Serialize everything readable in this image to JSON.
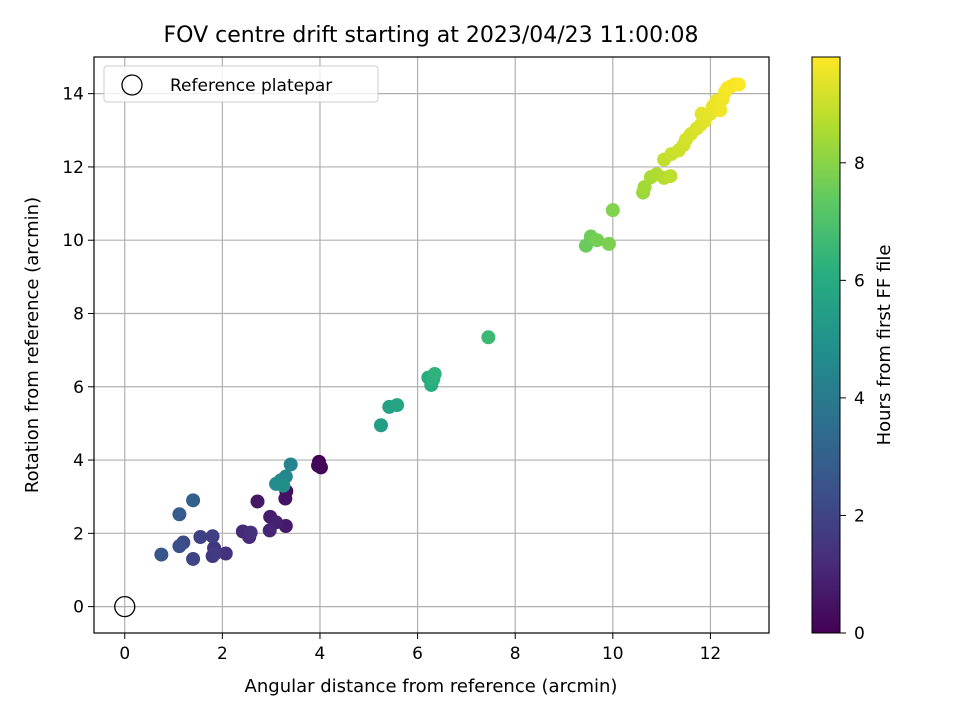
{
  "chart_data": {
    "type": "scatter",
    "title": "FOV centre drift starting at 2023/04/23 11:00:08",
    "xlabel": "Angular distance from reference (arcmin)",
    "ylabel": "Rotation from reference (arcmin)",
    "xlim": [
      -0.63,
      13.2
    ],
    "ylim": [
      -0.72,
      15.0
    ],
    "xticks": [
      0,
      2,
      4,
      6,
      8,
      10,
      12
    ],
    "yticks": [
      0,
      2,
      4,
      6,
      8,
      10,
      12,
      14
    ],
    "grid": true,
    "legend": {
      "position": "top-left",
      "entries": [
        "Reference platepar"
      ]
    },
    "reference_point": {
      "x": 0,
      "y": 0,
      "label": "Reference platepar",
      "marker": "open-circle"
    },
    "colorbar": {
      "label": "Hours from first FF file",
      "colormap": "viridis",
      "range": [
        0,
        9.8
      ],
      "ticks": [
        0,
        2,
        4,
        6,
        8
      ]
    },
    "points": [
      {
        "x": 3.98,
        "y": 3.95,
        "c": 0.0
      },
      {
        "x": 4.02,
        "y": 3.8,
        "c": 0.1
      },
      {
        "x": 3.96,
        "y": 3.85,
        "c": 0.2
      },
      {
        "x": 3.31,
        "y": 3.15,
        "c": 0.4
      },
      {
        "x": 3.29,
        "y": 2.95,
        "c": 0.5
      },
      {
        "x": 2.72,
        "y": 2.87,
        "c": 0.6
      },
      {
        "x": 3.3,
        "y": 2.2,
        "c": 0.7
      },
      {
        "x": 2.98,
        "y": 2.45,
        "c": 0.8
      },
      {
        "x": 3.1,
        "y": 2.3,
        "c": 0.9
      },
      {
        "x": 2.97,
        "y": 2.08,
        "c": 1.0
      },
      {
        "x": 2.42,
        "y": 2.05,
        "c": 1.1
      },
      {
        "x": 2.55,
        "y": 1.9,
        "c": 1.2
      },
      {
        "x": 2.58,
        "y": 2.02,
        "c": 1.3
      },
      {
        "x": 2.07,
        "y": 1.45,
        "c": 1.4
      },
      {
        "x": 1.83,
        "y": 1.6,
        "c": 1.5
      },
      {
        "x": 1.8,
        "y": 1.38,
        "c": 1.6
      },
      {
        "x": 1.85,
        "y": 1.45,
        "c": 1.7
      },
      {
        "x": 1.8,
        "y": 1.92,
        "c": 1.8
      },
      {
        "x": 1.55,
        "y": 1.9,
        "c": 1.9
      },
      {
        "x": 1.4,
        "y": 1.3,
        "c": 2.0
      },
      {
        "x": 1.2,
        "y": 1.75,
        "c": 2.2
      },
      {
        "x": 1.12,
        "y": 1.65,
        "c": 2.4
      },
      {
        "x": 0.75,
        "y": 1.42,
        "c": 2.6
      },
      {
        "x": 1.12,
        "y": 2.52,
        "c": 2.8
      },
      {
        "x": 1.4,
        "y": 2.9,
        "c": 3.0
      },
      {
        "x": 3.4,
        "y": 3.88,
        "c": 4.4
      },
      {
        "x": 3.3,
        "y": 3.55,
        "c": 4.5
      },
      {
        "x": 3.2,
        "y": 3.45,
        "c": 4.6
      },
      {
        "x": 3.1,
        "y": 3.35,
        "c": 4.7
      },
      {
        "x": 3.25,
        "y": 3.3,
        "c": 4.8
      },
      {
        "x": 5.25,
        "y": 4.95,
        "c": 5.4
      },
      {
        "x": 5.42,
        "y": 5.45,
        "c": 5.6
      },
      {
        "x": 5.58,
        "y": 5.5,
        "c": 5.7
      },
      {
        "x": 6.22,
        "y": 6.25,
        "c": 6.0
      },
      {
        "x": 6.28,
        "y": 6.05,
        "c": 6.1
      },
      {
        "x": 6.32,
        "y": 6.2,
        "c": 6.2
      },
      {
        "x": 6.35,
        "y": 6.35,
        "c": 6.3
      },
      {
        "x": 7.45,
        "y": 7.35,
        "c": 6.6
      },
      {
        "x": 9.45,
        "y": 9.85,
        "c": 7.5
      },
      {
        "x": 9.55,
        "y": 10.1,
        "c": 7.6
      },
      {
        "x": 9.68,
        "y": 10.0,
        "c": 7.7
      },
      {
        "x": 9.92,
        "y": 9.9,
        "c": 7.8
      },
      {
        "x": 10.0,
        "y": 10.82,
        "c": 7.9
      },
      {
        "x": 10.62,
        "y": 11.3,
        "c": 8.3
      },
      {
        "x": 10.65,
        "y": 11.45,
        "c": 8.4
      },
      {
        "x": 10.78,
        "y": 11.72,
        "c": 8.5
      },
      {
        "x": 10.9,
        "y": 11.8,
        "c": 8.6
      },
      {
        "x": 11.05,
        "y": 11.7,
        "c": 8.7
      },
      {
        "x": 11.18,
        "y": 11.75,
        "c": 8.8
      },
      {
        "x": 11.05,
        "y": 12.2,
        "c": 8.9
      },
      {
        "x": 11.2,
        "y": 12.35,
        "c": 9.0
      },
      {
        "x": 11.35,
        "y": 12.45,
        "c": 9.05
      },
      {
        "x": 11.45,
        "y": 12.6,
        "c": 9.1
      },
      {
        "x": 11.5,
        "y": 12.75,
        "c": 9.15
      },
      {
        "x": 11.6,
        "y": 12.9,
        "c": 9.2
      },
      {
        "x": 11.72,
        "y": 13.05,
        "c": 9.25
      },
      {
        "x": 11.8,
        "y": 13.15,
        "c": 9.3
      },
      {
        "x": 11.88,
        "y": 13.25,
        "c": 9.35
      },
      {
        "x": 11.82,
        "y": 13.45,
        "c": 9.4
      },
      {
        "x": 12.0,
        "y": 13.45,
        "c": 9.45
      },
      {
        "x": 12.05,
        "y": 13.65,
        "c": 9.5
      },
      {
        "x": 12.12,
        "y": 13.8,
        "c": 9.55
      },
      {
        "x": 12.2,
        "y": 13.55,
        "c": 9.6
      },
      {
        "x": 12.25,
        "y": 13.85,
        "c": 9.62
      },
      {
        "x": 12.3,
        "y": 14.05,
        "c": 9.65
      },
      {
        "x": 12.35,
        "y": 14.15,
        "c": 9.68
      },
      {
        "x": 12.42,
        "y": 14.2,
        "c": 9.7
      },
      {
        "x": 12.5,
        "y": 14.25,
        "c": 9.72
      },
      {
        "x": 12.58,
        "y": 14.25,
        "c": 9.75
      }
    ]
  }
}
